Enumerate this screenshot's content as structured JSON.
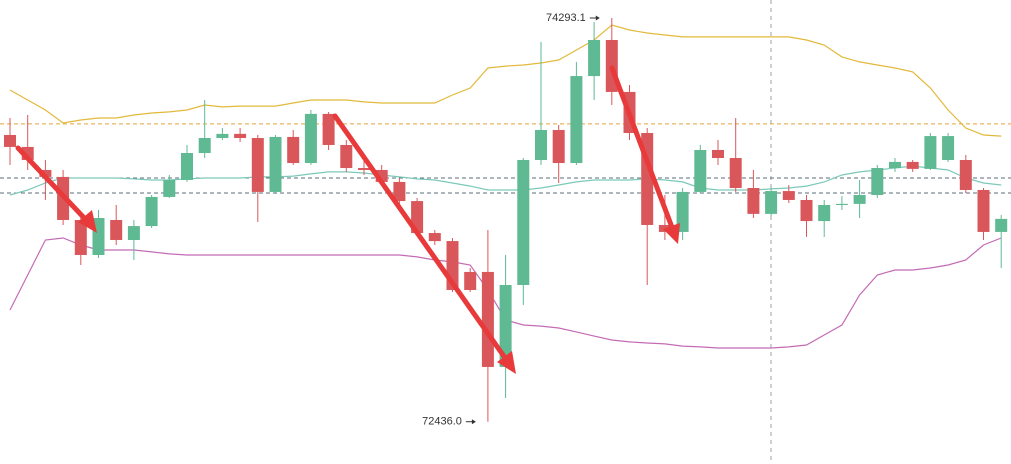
{
  "chart_data": {
    "type": "candlestick",
    "ylim": [
      72241.5,
      74375.9
    ],
    "up_color": "#5fb992",
    "down_color": "#d9575a",
    "open": [
      73755,
      73700,
      73594,
      73562,
      73364,
      73203,
      73364,
      73272,
      73336,
      73470,
      73548,
      73672,
      73741,
      73760,
      73741,
      73493,
      73746,
      73626,
      73852,
      73709,
      73603,
      73594,
      73539,
      73451,
      73304,
      73267,
      73125,
      73125,
      72688,
      73065,
      73640,
      73778,
      73626,
      74026,
      74192,
      73953,
      73764,
      73341,
      73309,
      73493,
      73686,
      73649,
      73511,
      73392,
      73497,
      73456,
      73359,
      73433,
      73438,
      73479,
      73603,
      73631,
      73599,
      73640,
      73640,
      73502,
      73309
    ],
    "high": [
      73833,
      73847,
      73640,
      73594,
      73387,
      73410,
      73433,
      73364,
      73479,
      73571,
      73709,
      73916,
      73787,
      73787,
      73755,
      73755,
      73778,
      73870,
      73861,
      73732,
      73640,
      73617,
      73557,
      73465,
      73318,
      73281,
      73143,
      73318,
      73203,
      73649,
      74183,
      73801,
      74091,
      74275,
      74293.1,
      73985,
      73787,
      73479,
      73511,
      73709,
      73732,
      73833,
      73594,
      73511,
      73525,
      73479,
      73456,
      73474,
      73548,
      73617,
      73649,
      73640,
      73764,
      73764,
      73663,
      73511,
      73387
    ],
    "low": [
      73617,
      73594,
      73456,
      73341,
      73157,
      73189,
      73249,
      73180,
      73327,
      73465,
      73539,
      73649,
      73732,
      73723,
      73355,
      73484,
      73617,
      73617,
      73686,
      73585,
      73571,
      73525,
      73433,
      73290,
      73249,
      73033,
      73033,
      72436.0,
      72545,
      72973,
      73617,
      73534,
      73617,
      73916,
      73893,
      73732,
      73065,
      73272,
      73272,
      73488,
      73617,
      73493,
      73373,
      73382,
      73442,
      73286,
      73286,
      73410,
      73373,
      73465,
      73585,
      73585,
      73594,
      73631,
      73488,
      73272,
      73143
    ],
    "close": [
      73700,
      73640,
      73562,
      73364,
      73203,
      73373,
      73272,
      73336,
      73470,
      73548,
      73672,
      73741,
      73760,
      73741,
      73493,
      73746,
      73626,
      73852,
      73709,
      73603,
      73594,
      73539,
      73451,
      73304,
      73267,
      73042,
      73042,
      72688,
      73065,
      73640,
      73778,
      73626,
      74026,
      74192,
      73953,
      73764,
      73341,
      73309,
      73493,
      73686,
      73649,
      73511,
      73392,
      73497,
      73456,
      73359,
      73433,
      73438,
      73479,
      73603,
      73631,
      73599,
      73750,
      73750,
      73502,
      73309,
      73369
    ],
    "bands": [
      {
        "color": "#e2b93b",
        "values": [
          73962,
          73916,
          73870,
          73810,
          73824,
          73833,
          73833,
          73847,
          73856,
          73861,
          73870,
          73893,
          73884,
          73888,
          73888,
          73888,
          73902,
          73916,
          73916,
          73916,
          73907,
          73902,
          73902,
          73902,
          73902,
          73939,
          73971,
          74063,
          74072,
          74077,
          74086,
          74100,
          74146,
          74192,
          74261,
          74238,
          74224,
          74215,
          74206,
          74206,
          74206,
          74206,
          74206,
          74206,
          74206,
          74192,
          74169,
          74114,
          74091,
          74077,
          74063,
          74045,
          73971,
          73870,
          73787,
          73755,
          73750
        ]
      },
      {
        "color": "#7cc9b9",
        "values": [
          73479,
          73502,
          73534,
          73557,
          73557,
          73557,
          73557,
          73553,
          73548,
          73548,
          73553,
          73557,
          73557,
          73557,
          73562,
          73562,
          73566,
          73576,
          73585,
          73585,
          73580,
          73571,
          73562,
          73553,
          73548,
          73534,
          73520,
          73502,
          73502,
          73502,
          73511,
          73525,
          73539,
          73548,
          73548,
          73548,
          73553,
          73548,
          73539,
          73511,
          73502,
          73502,
          73502,
          73507,
          73511,
          73520,
          73539,
          73571,
          73585,
          73594,
          73603,
          73612,
          73603,
          73594,
          73557,
          73534,
          73525
        ]
      },
      {
        "color": "#c46bb5",
        "values": [
          72950,
          73111,
          73272,
          73281,
          73249,
          73226,
          73226,
          73226,
          73217,
          73208,
          73203,
          73203,
          73203,
          73203,
          73203,
          73203,
          73203,
          73203,
          73203,
          73203,
          73203,
          73203,
          73203,
          73194,
          73180,
          73171,
          73157,
          73042,
          72904,
          72881,
          72876,
          72867,
          72849,
          72830,
          72812,
          72803,
          72798,
          72794,
          72784,
          72780,
          72775,
          72775,
          72775,
          72775,
          72780,
          72789,
          72835,
          72881,
          73019,
          73111,
          73134,
          73134,
          73143,
          73157,
          73180,
          73249,
          73281
        ]
      }
    ],
    "hlines": [
      {
        "value": 73806,
        "color": "#e8a33c"
      },
      {
        "value": 73557,
        "color": "#5a6e78"
      },
      {
        "value": 73488,
        "color": "#5a6e78"
      }
    ],
    "annotations": [
      {
        "value": 74293.1,
        "label": "74293.1",
        "at": 34
      },
      {
        "value": 72436,
        "label": "72436.0",
        "at": 27
      }
    ]
  }
}
